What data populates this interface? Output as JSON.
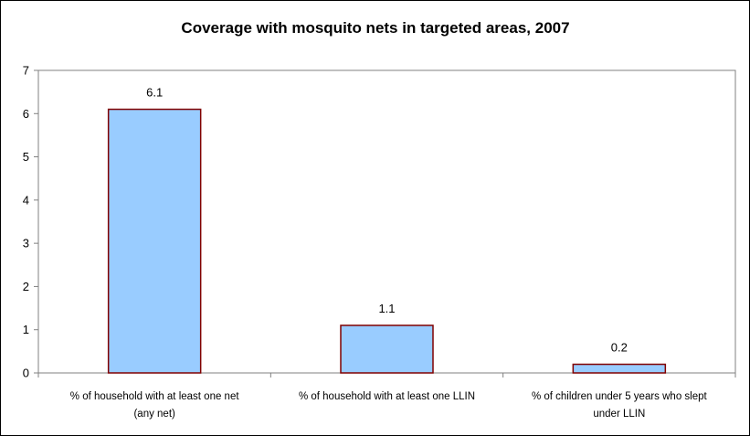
{
  "chart_data": {
    "type": "bar",
    "title": "Coverage with mosquito nets in targeted areas, 2007",
    "xlabel": "",
    "ylabel": "",
    "ylim": [
      0,
      7
    ],
    "yticks": [
      0,
      1,
      2,
      3,
      4,
      5,
      6,
      7
    ],
    "grid": false,
    "legend": "none",
    "categories": [
      [
        "% of household with at least one net",
        "(any net)"
      ],
      [
        "% of household with at least one LLIN"
      ],
      [
        "% of children under 5 years who slept",
        "under LLIN"
      ]
    ],
    "values": [
      6.1,
      1.1,
      0.2
    ],
    "data_labels": [
      "6.1",
      "1.1",
      "0.2"
    ],
    "colors": {
      "bar_fill": "#99ccff",
      "bar_stroke": "#800000",
      "axis": "#808080",
      "frame": "#000000"
    }
  }
}
